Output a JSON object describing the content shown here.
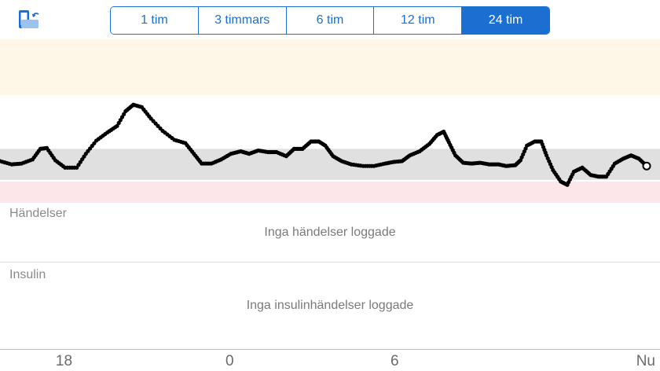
{
  "toolbar": {
    "rotate_icon": "phone-rotate-icon",
    "ranges": [
      {
        "label": "1 tim",
        "active": false
      },
      {
        "label": "3 timmars",
        "active": false
      },
      {
        "label": "6 tim",
        "active": false
      },
      {
        "label": "12 tim",
        "active": false
      },
      {
        "label": "24 tim",
        "active": true
      }
    ]
  },
  "colors": {
    "accent": "#1a6fd0",
    "high_zone": "#fef6e6",
    "target_zone": "#e0e0e0",
    "low_zone": "#fde6ea",
    "line": "#000000"
  },
  "events": {
    "title": "Händelser",
    "empty": "Inga händelser loggade"
  },
  "insulin": {
    "title": "Insulin",
    "empty": "Inga insulinhändelser loggade"
  },
  "xaxis": {
    "ticks": [
      {
        "label": "18",
        "frac": 0.097
      },
      {
        "label": "0",
        "frac": 0.348
      },
      {
        "label": "6",
        "frac": 0.598
      },
      {
        "label": "Nu",
        "frac": 1.0
      }
    ]
  },
  "chart_data": {
    "type": "scatter",
    "x_range": [
      0,
      1
    ],
    "y_range": [
      0,
      1
    ],
    "zones": {
      "high": [
        0.66,
        1.0
      ],
      "target": [
        0.14,
        0.33
      ],
      "low": [
        0.0,
        0.13
      ]
    },
    "points": [
      [
        0.0,
        0.255
      ],
      [
        0.018,
        0.235
      ],
      [
        0.033,
        0.24
      ],
      [
        0.05,
        0.265
      ],
      [
        0.062,
        0.33
      ],
      [
        0.072,
        0.335
      ],
      [
        0.085,
        0.26
      ],
      [
        0.1,
        0.215
      ],
      [
        0.118,
        0.215
      ],
      [
        0.132,
        0.3
      ],
      [
        0.148,
        0.38
      ],
      [
        0.165,
        0.43
      ],
      [
        0.18,
        0.47
      ],
      [
        0.193,
        0.56
      ],
      [
        0.205,
        0.6
      ],
      [
        0.218,
        0.585
      ],
      [
        0.232,
        0.515
      ],
      [
        0.25,
        0.44
      ],
      [
        0.268,
        0.385
      ],
      [
        0.285,
        0.365
      ],
      [
        0.298,
        0.3
      ],
      [
        0.31,
        0.24
      ],
      [
        0.325,
        0.24
      ],
      [
        0.34,
        0.265
      ],
      [
        0.355,
        0.3
      ],
      [
        0.37,
        0.315
      ],
      [
        0.383,
        0.3
      ],
      [
        0.397,
        0.32
      ],
      [
        0.412,
        0.31
      ],
      [
        0.425,
        0.31
      ],
      [
        0.44,
        0.285
      ],
      [
        0.452,
        0.33
      ],
      [
        0.465,
        0.33
      ],
      [
        0.478,
        0.375
      ],
      [
        0.49,
        0.375
      ],
      [
        0.5,
        0.35
      ],
      [
        0.512,
        0.285
      ],
      [
        0.525,
        0.255
      ],
      [
        0.54,
        0.235
      ],
      [
        0.558,
        0.225
      ],
      [
        0.575,
        0.225
      ],
      [
        0.592,
        0.24
      ],
      [
        0.605,
        0.25
      ],
      [
        0.618,
        0.255
      ],
      [
        0.63,
        0.29
      ],
      [
        0.645,
        0.315
      ],
      [
        0.66,
        0.36
      ],
      [
        0.672,
        0.415
      ],
      [
        0.682,
        0.435
      ],
      [
        0.69,
        0.37
      ],
      [
        0.7,
        0.29
      ],
      [
        0.712,
        0.245
      ],
      [
        0.725,
        0.24
      ],
      [
        0.738,
        0.245
      ],
      [
        0.752,
        0.235
      ],
      [
        0.766,
        0.235
      ],
      [
        0.778,
        0.225
      ],
      [
        0.792,
        0.23
      ],
      [
        0.8,
        0.26
      ],
      [
        0.81,
        0.35
      ],
      [
        0.822,
        0.375
      ],
      [
        0.832,
        0.375
      ],
      [
        0.84,
        0.29
      ],
      [
        0.85,
        0.2
      ],
      [
        0.862,
        0.13
      ],
      [
        0.872,
        0.11
      ],
      [
        0.882,
        0.19
      ],
      [
        0.895,
        0.215
      ],
      [
        0.908,
        0.17
      ],
      [
        0.92,
        0.16
      ],
      [
        0.932,
        0.16
      ],
      [
        0.945,
        0.24
      ],
      [
        0.958,
        0.27
      ],
      [
        0.97,
        0.29
      ],
      [
        0.982,
        0.27
      ],
      [
        0.994,
        0.225
      ]
    ],
    "last_point": [
      0.994,
      0.225
    ]
  }
}
